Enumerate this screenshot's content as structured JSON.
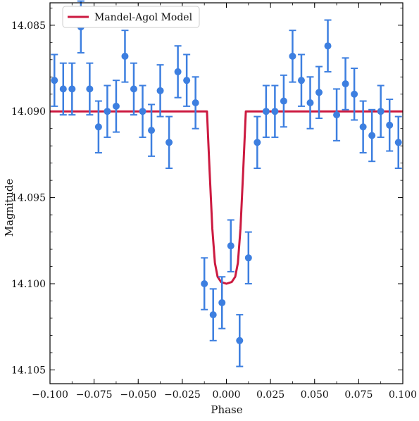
{
  "chart_data": {
    "type": "scatter",
    "title": "",
    "xlabel": "Phase",
    "ylabel": "Magnitude",
    "xlim": [
      -0.1,
      0.1
    ],
    "ylim": [
      14.1058,
      14.0837
    ],
    "y_inverted": true,
    "grid": false,
    "legend_position": "top-left",
    "x_ticks": [
      -0.1,
      -0.075,
      -0.05,
      -0.025,
      0.0,
      0.025,
      0.05,
      0.075,
      0.1
    ],
    "x_tick_labels": [
      "−0.100",
      "−0.075",
      "−0.050",
      "−0.025",
      "0.000",
      "0.025",
      "0.050",
      "0.075",
      "0.100"
    ],
    "y_ticks": [
      14.085,
      14.09,
      14.095,
      14.1,
      14.105
    ],
    "y_tick_labels": [
      "14.085",
      "14.090",
      "14.095",
      "14.100",
      "14.105"
    ],
    "series": [
      {
        "kind": "errorbar",
        "color": "#3d7fe0",
        "error": 0.0015,
        "points": [
          [
            -0.0975,
            14.0882
          ],
          [
            -0.0925,
            14.0887
          ],
          [
            -0.0875,
            14.0887
          ],
          [
            -0.0825,
            14.0851
          ],
          [
            -0.0775,
            14.0887
          ],
          [
            -0.0725,
            14.0909
          ],
          [
            -0.0675,
            14.09
          ],
          [
            -0.0625,
            14.0897
          ],
          [
            -0.0575,
            14.0868
          ],
          [
            -0.0525,
            14.0887
          ],
          [
            -0.0475,
            14.09
          ],
          [
            -0.0425,
            14.0911
          ],
          [
            -0.0375,
            14.0888
          ],
          [
            -0.0325,
            14.0918
          ],
          [
            -0.0275,
            14.0877
          ],
          [
            -0.0225,
            14.0882
          ],
          [
            -0.0175,
            14.0895
          ],
          [
            -0.0125,
            14.1
          ],
          [
            -0.0075,
            14.1018
          ],
          [
            -0.0025,
            14.1011
          ],
          [
            0.0025,
            14.0978
          ],
          [
            0.0075,
            14.1033
          ],
          [
            0.0125,
            14.0985
          ],
          [
            0.0175,
            14.0918
          ],
          [
            0.0225,
            14.09
          ],
          [
            0.0275,
            14.09
          ],
          [
            0.0325,
            14.0894
          ],
          [
            0.0375,
            14.0868
          ],
          [
            0.0425,
            14.0882
          ],
          [
            0.0475,
            14.0895
          ],
          [
            0.0525,
            14.0889
          ],
          [
            0.0575,
            14.0862
          ],
          [
            0.0625,
            14.0902
          ],
          [
            0.0675,
            14.0884
          ],
          [
            0.0725,
            14.089
          ],
          [
            0.0775,
            14.0909
          ],
          [
            0.0825,
            14.0914
          ],
          [
            0.0875,
            14.09
          ],
          [
            0.0925,
            14.0908
          ],
          [
            0.0975,
            14.0918
          ]
        ]
      },
      {
        "kind": "line",
        "name": "Mandel-Agol Model",
        "color": "#cc1a40",
        "points": [
          [
            -0.1,
            14.09
          ],
          [
            -0.011,
            14.09
          ],
          [
            -0.0095,
            14.0935
          ],
          [
            -0.008,
            14.0968
          ],
          [
            -0.0065,
            14.0988
          ],
          [
            -0.005,
            14.0996
          ],
          [
            -0.003,
            14.0999
          ],
          [
            0.0,
            14.1
          ],
          [
            0.003,
            14.0999
          ],
          [
            0.005,
            14.0996
          ],
          [
            0.0065,
            14.0988
          ],
          [
            0.008,
            14.0968
          ],
          [
            0.0095,
            14.0935
          ],
          [
            0.011,
            14.09
          ],
          [
            0.1,
            14.09
          ]
        ]
      }
    ]
  }
}
